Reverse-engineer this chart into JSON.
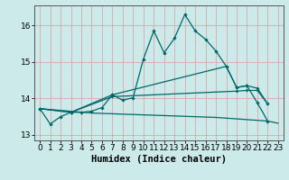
{
  "xlabel": "Humidex (Indice chaleur)",
  "bg_color": "#cceaea",
  "grid_color": "#d8a8a8",
  "line_color": "#006868",
  "ylim": [
    12.85,
    16.55
  ],
  "xlim": [
    -0.5,
    23.5
  ],
  "yticks": [
    13,
    14,
    15,
    16
  ],
  "xticks": [
    0,
    1,
    2,
    3,
    4,
    5,
    6,
    7,
    8,
    9,
    10,
    11,
    12,
    13,
    14,
    15,
    16,
    17,
    18,
    19,
    20,
    21,
    22,
    23
  ],
  "xlabel_fontsize": 7.5,
  "tick_fontsize": 6.5,
  "line1_x": [
    0,
    1,
    2,
    3,
    4,
    5,
    6,
    7,
    8,
    9,
    10,
    11,
    12,
    13,
    14,
    15,
    16,
    17,
    18,
    19,
    20,
    21,
    22
  ],
  "line1_y": [
    13.72,
    13.3,
    13.5,
    13.62,
    13.62,
    13.65,
    13.75,
    14.1,
    13.95,
    14.02,
    15.08,
    15.85,
    15.25,
    15.65,
    16.3,
    15.85,
    15.62,
    15.3,
    14.88,
    14.3,
    14.35,
    13.88,
    13.38
  ],
  "line2_x": [
    0,
    3,
    7,
    18,
    19,
    20,
    21,
    22
  ],
  "line2_y": [
    13.72,
    13.62,
    14.1,
    14.88,
    14.3,
    14.35,
    14.28,
    13.85
  ],
  "line3_x": [
    0,
    3,
    7,
    19,
    20,
    21,
    22
  ],
  "line3_y": [
    13.72,
    13.62,
    14.05,
    14.2,
    14.22,
    14.22,
    13.85
  ],
  "line4_x": [
    0,
    5,
    10,
    15,
    17,
    22,
    23
  ],
  "line4_y": [
    13.72,
    13.6,
    13.55,
    13.5,
    13.48,
    13.38,
    13.32
  ]
}
